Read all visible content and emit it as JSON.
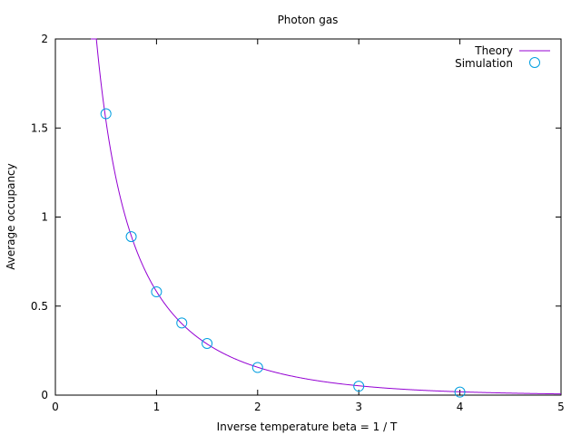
{
  "chart_data": {
    "type": "line",
    "title": "Photon gas",
    "xlabel": "Inverse temperature beta = 1 / T",
    "ylabel": "Average occupancy",
    "xlim": [
      0,
      5
    ],
    "ylim": [
      0,
      2
    ],
    "xticks": [
      "0",
      "1",
      "2",
      "3",
      "4",
      "5"
    ],
    "yticks": [
      "0",
      "0.5",
      "1",
      "1.5",
      "2"
    ],
    "xtick_values": [
      0,
      1,
      2,
      3,
      4,
      5
    ],
    "ytick_values": [
      0,
      0.5,
      1,
      1.5,
      2
    ],
    "grid": false,
    "legend_position": "top-right",
    "series": [
      {
        "name": "Theory",
        "style": "line",
        "color": "#9400d3",
        "function": "1/(exp(beta)-1)"
      },
      {
        "name": "Simulation",
        "style": "circle-markers",
        "color": "#009ee0",
        "x": [
          0.5,
          0.75,
          1.0,
          1.25,
          1.5,
          2.0,
          3.0,
          4.0
        ],
        "y": [
          1.58,
          0.89,
          0.58,
          0.405,
          0.29,
          0.155,
          0.05,
          0.017
        ]
      }
    ]
  }
}
